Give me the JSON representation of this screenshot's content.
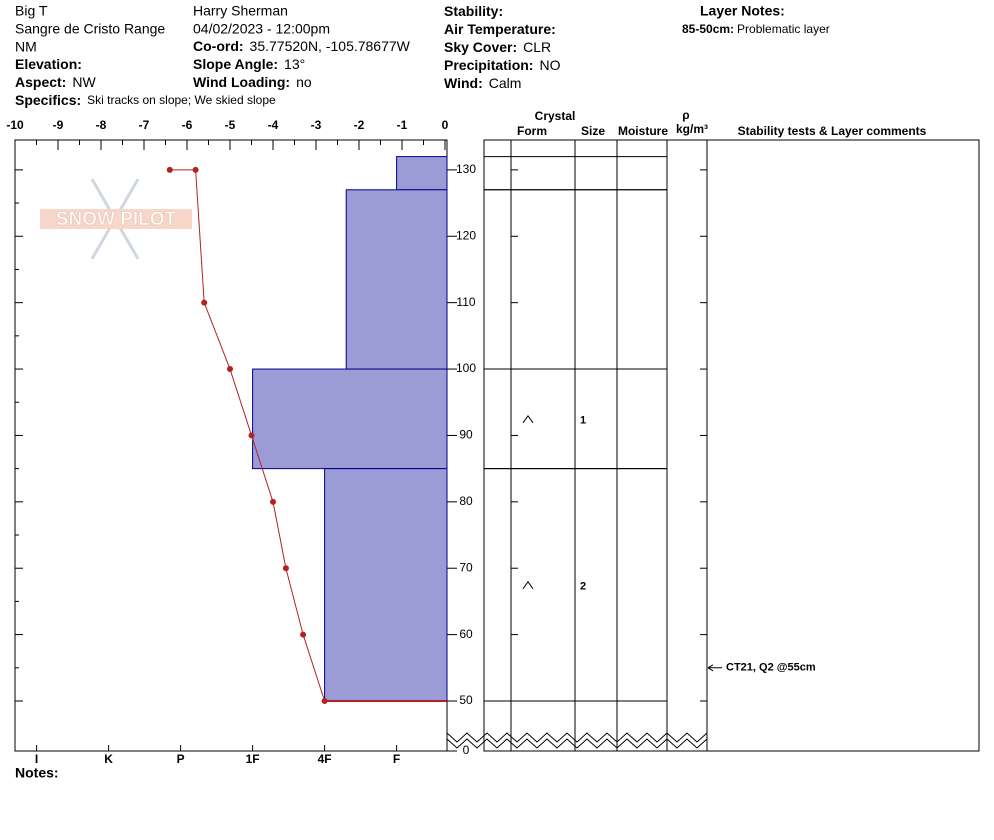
{
  "header": {
    "site": [
      "Big T",
      "Sangre de Cristo Range",
      "NM"
    ],
    "observer": "Harry Sherman",
    "datetime": "04/02/2023 - 12:00pm",
    "fields": [
      {
        "label": "Elevation:",
        "value": ""
      },
      {
        "label": "Aspect:",
        "value": "NW"
      },
      {
        "label": "Co-ord:",
        "value": "35.77520N, -105.78677W"
      },
      {
        "label": "Slope Angle:",
        "value": "13°"
      },
      {
        "label": "Wind Loading:",
        "value": "no"
      },
      {
        "label": "Stability:",
        "value": ""
      },
      {
        "label": "Air Temperature:",
        "value": ""
      },
      {
        "label": "Sky Cover:",
        "value": "CLR"
      },
      {
        "label": "Precipitation:",
        "value": "NO"
      },
      {
        "label": "Wind:",
        "value": "Calm"
      },
      {
        "label": "Specifics:",
        "value": "Ski tracks on slope; We skied slope"
      }
    ],
    "layer_notes_title": "Layer Notes:",
    "layer_notes": [
      {
        "range": "85-50cm:",
        "text": "Problematic layer"
      }
    ],
    "logo": "SNOW PILOT",
    "notes_label": "Notes:"
  },
  "chart_data": {
    "type": "snow-profile",
    "temp_lim": [
      -10,
      0
    ],
    "temp_ticks": [
      -10,
      -9,
      -8,
      -7,
      -6,
      -5,
      -4,
      -3,
      -2,
      -1,
      0
    ],
    "height_lim": [
      0,
      134.5
    ],
    "height_ticks": [
      130,
      120,
      110,
      100,
      90,
      80,
      70,
      60,
      50,
      0
    ],
    "hardness_lim": [
      0.3,
      6.3
    ],
    "hardness_ticks": [
      {
        "value": 6,
        "label": "I"
      },
      {
        "value": 5,
        "label": "K"
      },
      {
        "value": 4,
        "label": "P"
      },
      {
        "value": 3,
        "label": "1F"
      },
      {
        "value": 2,
        "label": "4F"
      },
      {
        "value": 1,
        "label": "F"
      }
    ],
    "bar_color": "#9b9bd6",
    "line_color": "#b22222",
    "columns": {
      "crystal": "Crystal",
      "form": "Form",
      "size": "Size",
      "moisture": "Moisture",
      "rho": "ρ",
      "density": "kg/m³",
      "comments": "Stability tests & Layer comments"
    },
    "layers": [
      {
        "top": 132,
        "bottom": 127,
        "hardness": 1
      },
      {
        "top": 127,
        "bottom": 100,
        "hardness": 1.7
      },
      {
        "top": 100,
        "bottom": 85,
        "hardness": 3,
        "size": 1
      },
      {
        "top": 85,
        "bottom": 50,
        "hardness": 2,
        "size": 2
      }
    ],
    "temperature": {
      "heights": [
        130,
        130,
        110,
        100,
        90,
        80,
        70,
        60,
        50
      ],
      "values": [
        -6.4,
        -5.8,
        -5.6,
        -5.0,
        -4.5,
        -4.0,
        -3.7,
        -3.3,
        -2.8
      ]
    },
    "tests": [
      {
        "height": 55,
        "label": "CT21, Q2 @55cm"
      }
    ]
  }
}
